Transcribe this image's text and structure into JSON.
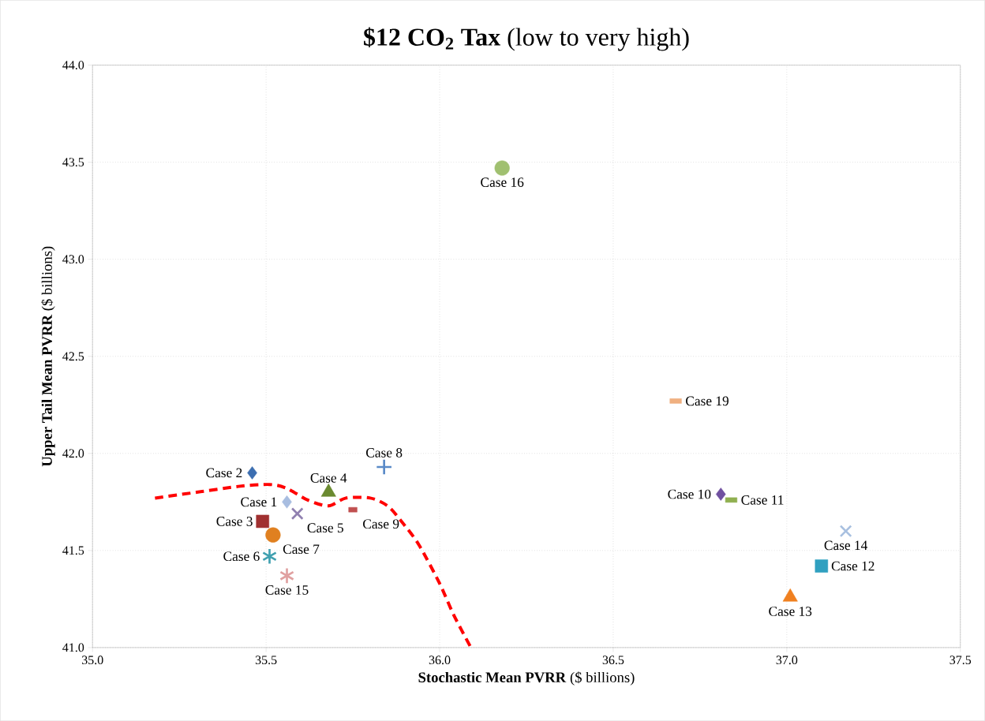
{
  "chart_data": {
    "type": "scatter",
    "title": "**$12 CO$_{2}$ Tax** (low to very high)",
    "xlabel": "**Stochastic Mean PVRR** ($ billions)",
    "ylabel": "**Upper Tail Mean PVRR** ($ billions)",
    "xlim": [
      35.0,
      37.5
    ],
    "ylim": [
      41.0,
      44.0
    ],
    "xticks": [
      {
        "value": 35,
        "label": "35.0"
      },
      35.5,
      {
        "value": 36,
        "label": "36.0"
      },
      36.5,
      {
        "value": 37,
        "label": "37.0"
      },
      37.5
    ],
    "yticks": [
      {
        "value": 41,
        "label": "41.0"
      },
      41.5,
      {
        "value": 42,
        "label": "42.0"
      },
      42.5,
      {
        "value": 43,
        "label": "43.0"
      },
      43.5,
      {
        "value": 44,
        "label": "44.0"
      }
    ],
    "grid": true,
    "series": [
      {
        "name": "Case 1",
        "color": "#a8bde0",
        "marker": "diamond",
        "x": [
          35.56
        ],
        "values": [
          41.75
        ]
      },
      {
        "name": "Case 2",
        "color": "#3c6eb0",
        "marker": "diamond",
        "x": [
          35.46
        ],
        "values": [
          41.9
        ]
      },
      {
        "name": "Case 3",
        "color": "#a03030",
        "marker": "square",
        "x": [
          35.49
        ],
        "values": [
          41.65
        ]
      },
      {
        "name": "Case 4",
        "color": "#6a8a30",
        "marker": "triangle",
        "x": [
          35.68
        ],
        "values": [
          41.8
        ]
      },
      {
        "name": "Case 5",
        "color": "#9080b0",
        "marker": "cross",
        "x": [
          35.59
        ],
        "values": [
          41.69
        ]
      },
      {
        "name": "Case 6",
        "color": "#40a0b0",
        "marker": "cross",
        "x": [
          35.51
        ],
        "values": [
          41.47
        ]
      },
      {
        "name": "Case 7",
        "color": "#e08020",
        "marker": "circle",
        "x": [
          35.52
        ],
        "values": [
          41.58
        ]
      },
      {
        "name": "Case 8",
        "color": "#5a8ac8",
        "marker": "cross",
        "x": [
          35.84
        ],
        "values": [
          41.93
        ]
      },
      {
        "name": "Case 9",
        "color": "#c05050",
        "marker": "square",
        "x": [
          35.75
        ],
        "values": [
          41.71
        ]
      },
      {
        "name": "Case 10",
        "color": "#7050a0",
        "marker": "diamond",
        "x": [
          36.81
        ],
        "values": [
          41.79
        ]
      },
      {
        "name": "Case 11",
        "color": "#90b050",
        "marker": "square",
        "x": [
          36.84
        ],
        "values": [
          41.76
        ]
      },
      {
        "name": "Case 12",
        "color": "#30a0c0",
        "marker": "square",
        "x": [
          37.1
        ],
        "values": [
          41.42
        ]
      },
      {
        "name": "Case 13",
        "color": "#f08020",
        "marker": "triangle",
        "x": [
          37.01
        ],
        "values": [
          41.26
        ]
      },
      {
        "name": "Case 14",
        "color": "#a8c0e0",
        "marker": "cross",
        "x": [
          37.17
        ],
        "values": [
          41.6
        ]
      },
      {
        "name": "Case 15",
        "color": "#e0a0a0",
        "marker": "cross",
        "x": [
          35.56
        ],
        "values": [
          41.37
        ]
      },
      {
        "name": "Case 16",
        "color": "#a0c070",
        "marker": "circle",
        "x": [
          36.18
        ],
        "values": [
          43.47
        ]
      },
      {
        "name": "Case 19",
        "color": "#f0b080",
        "marker": "square",
        "x": [
          36.68
        ],
        "values": [
          42.27
        ]
      },
      {
        "type": "line",
        "color": "#ff0000",
        "line_style": "dashed",
        "marker": "none",
        "x": [
          35.18,
          35.3,
          35.42,
          35.51,
          35.56,
          35.62,
          35.68,
          35.73,
          35.8,
          35.85,
          35.89,
          35.94,
          36.0,
          36.04,
          36.09
        ],
        "values": [
          41.77,
          41.8,
          41.83,
          41.84,
          41.82,
          41.76,
          41.73,
          41.77,
          41.77,
          41.73,
          41.65,
          41.53,
          41.33,
          41.17,
          41.0
        ]
      }
    ]
  }
}
